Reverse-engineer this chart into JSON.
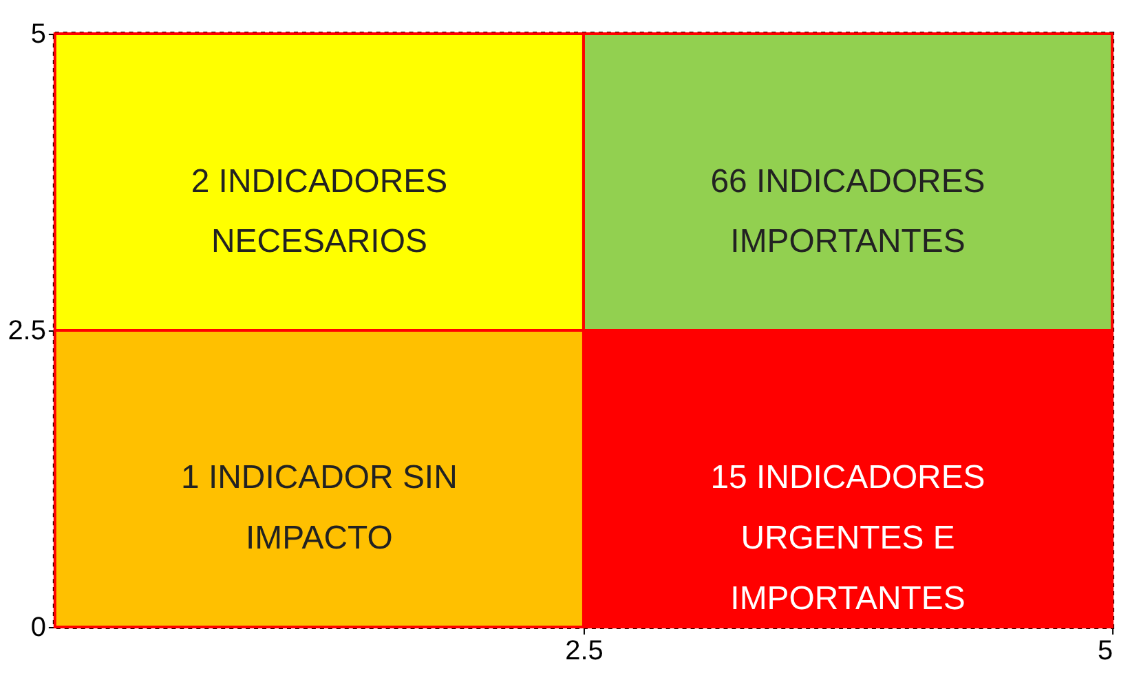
{
  "chart_data": {
    "type": "heatmap",
    "cells": [
      [
        2,
        66
      ],
      [
        1,
        15
      ]
    ],
    "cell_labels": [
      [
        "2 INDICADORES\nNECESARIOS",
        "66 INDICADORES\nIMPORTANTES"
      ],
      [
        "1 INDICADOR SIN\nIMPACTO",
        "15 INDICADORES\nURGENTES E\nIMPORTANTES"
      ]
    ],
    "colors": [
      [
        "#ffff00",
        "#92d050"
      ],
      [
        "#ffc000",
        "#ff0000"
      ]
    ],
    "xlim": [
      0,
      5
    ],
    "ylim": [
      0,
      5
    ],
    "xticks": [
      2.5,
      5
    ],
    "yticks": [
      0,
      2.5,
      5
    ],
    "grid": false
  }
}
